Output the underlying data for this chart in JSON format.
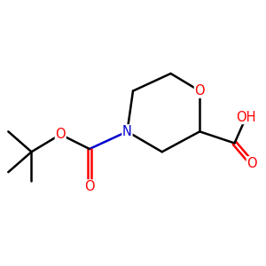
{
  "background_color": "#ffffff",
  "atom_colors": {
    "O": "#ff0000",
    "N": "#0000cd",
    "C": "#000000"
  },
  "bond_color": "#000000",
  "bond_width": 1.8,
  "font_size": 10.5,
  "figsize": [
    3.0,
    3.0
  ],
  "dpi": 100,
  "xlim": [
    0.5,
    9.5
  ],
  "ylim": [
    2.0,
    9.5
  ]
}
